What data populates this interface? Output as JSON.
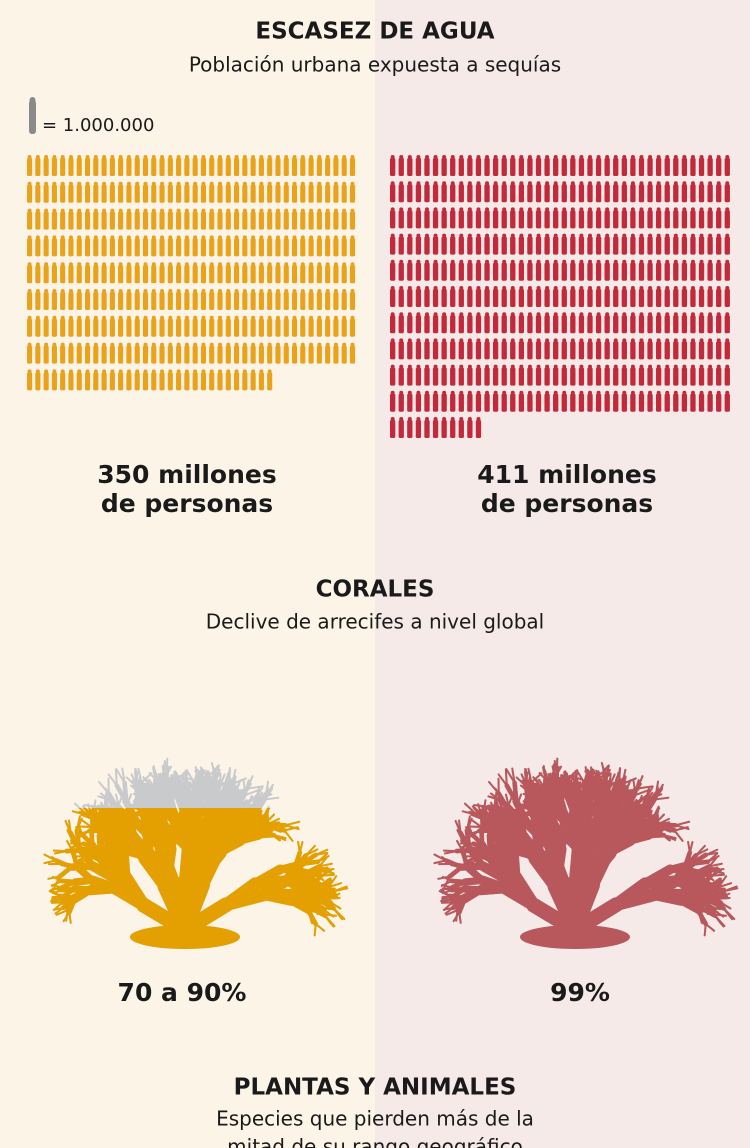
{
  "water": {
    "title": "ESCASEZ DE AGUA",
    "subtitle": "Población urbana expuesta a sequías",
    "unit_label": "= 1.000.000",
    "left": {
      "value": 350,
      "label_1": "350 millones",
      "label_2": "de personas",
      "color": "#e9a21a"
    },
    "right": {
      "value": 411,
      "label_1": "411 millones",
      "label_2": "de personas",
      "color": "#c22a3c"
    }
  },
  "corals": {
    "title": "CORALES",
    "subtitle": "Declive de arrecifes a nivel global",
    "left": {
      "value": 70,
      "label": "70 a 90%",
      "color": "#e3a000"
    },
    "right": {
      "value": 99,
      "label": "99%",
      "color": "#b8585c"
    }
  },
  "species": {
    "title": "PLANTAS Y ANIMALES",
    "subtitle_1": "Especies que pierden más de la",
    "subtitle_2": "mitad de su rango geográfico"
  }
}
